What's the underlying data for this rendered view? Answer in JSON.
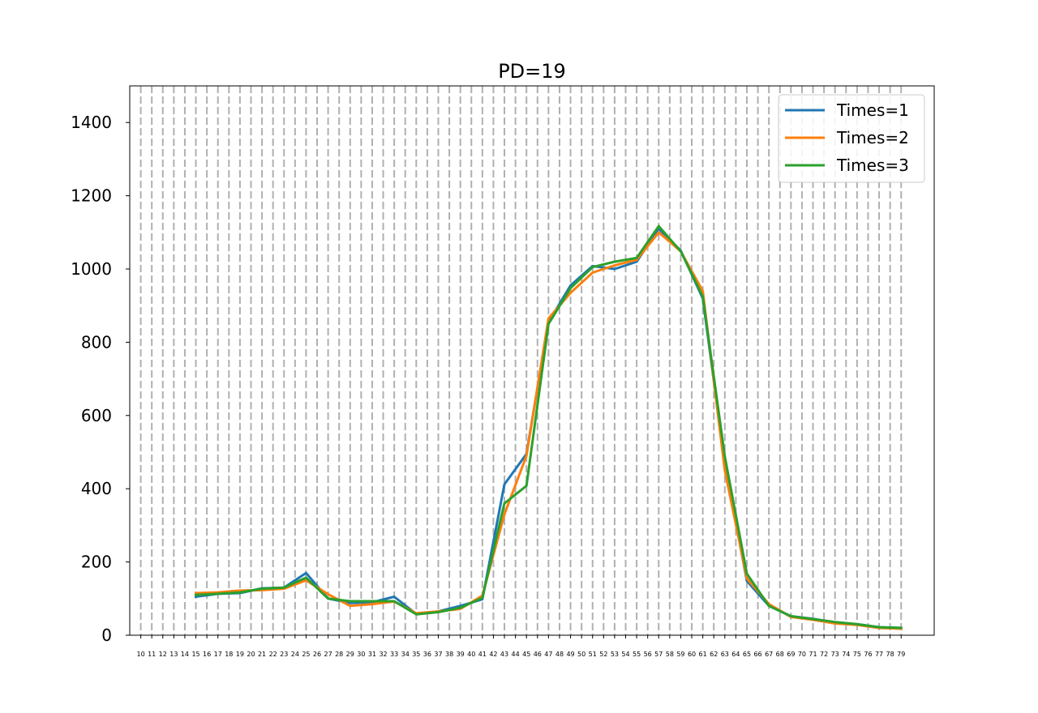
{
  "chart_data": {
    "type": "line",
    "title": "PD=19",
    "xlabel": "",
    "ylabel": "",
    "x_ticks": [
      10,
      11,
      12,
      13,
      14,
      15,
      16,
      17,
      18,
      19,
      20,
      21,
      22,
      23,
      24,
      25,
      26,
      27,
      28,
      29,
      30,
      31,
      32,
      33,
      34,
      35,
      36,
      37,
      38,
      39,
      40,
      41,
      42,
      43,
      44,
      45,
      46,
      47,
      48,
      49,
      50,
      51,
      52,
      53,
      54,
      55,
      56,
      57,
      58,
      59,
      60,
      61,
      62,
      63,
      64,
      65,
      66,
      67,
      68,
      69,
      70,
      71,
      72,
      73,
      74,
      75,
      76,
      77,
      78,
      79
    ],
    "y_ticks": [
      0,
      200,
      400,
      600,
      800,
      1000,
      1200,
      1400
    ],
    "xlim": [
      9,
      82
    ],
    "ylim": [
      0,
      1500
    ],
    "grid": {
      "x": true,
      "style": "dashed",
      "color": "#b0b0b0"
    },
    "legend": {
      "position": "top-right"
    },
    "series": [
      {
        "name": "Times=1",
        "color": "#1f77b4",
        "x": [
          15,
          17,
          19,
          21,
          23,
          25,
          27,
          29,
          31,
          33,
          35,
          37,
          39,
          41,
          43,
          45,
          47,
          49,
          51,
          53,
          55,
          57,
          59,
          61,
          63,
          65,
          67,
          69,
          71,
          73,
          75,
          77,
          79
        ],
        "values": [
          105,
          113,
          115,
          128,
          130,
          170,
          100,
          88,
          90,
          105,
          58,
          65,
          80,
          98,
          412,
          495,
          855,
          955,
          1008,
          1000,
          1020,
          1110,
          1050,
          920,
          470,
          148,
          80,
          52,
          45,
          35,
          30,
          22,
          20
        ]
      },
      {
        "name": "Times=2",
        "color": "#ff7f0e",
        "x": [
          15,
          17,
          19,
          21,
          23,
          25,
          27,
          29,
          31,
          33,
          35,
          37,
          39,
          41,
          43,
          45,
          47,
          49,
          51,
          53,
          55,
          57,
          59,
          61,
          63,
          65,
          67,
          69,
          71,
          73,
          75,
          77,
          79
        ],
        "values": [
          115,
          117,
          122,
          123,
          127,
          150,
          112,
          80,
          85,
          92,
          60,
          65,
          72,
          108,
          330,
          490,
          865,
          935,
          990,
          1010,
          1025,
          1100,
          1048,
          940,
          450,
          155,
          85,
          50,
          42,
          32,
          28,
          20,
          18
        ]
      },
      {
        "name": "Times=3",
        "color": "#2ca02c",
        "x": [
          15,
          17,
          19,
          21,
          23,
          25,
          27,
          29,
          31,
          33,
          35,
          37,
          39,
          41,
          43,
          45,
          47,
          49,
          51,
          53,
          55,
          57,
          59,
          61,
          63,
          65,
          67,
          69,
          71,
          73,
          75,
          77,
          79
        ],
        "values": [
          110,
          113,
          117,
          127,
          130,
          157,
          100,
          93,
          93,
          93,
          57,
          63,
          75,
          102,
          360,
          408,
          850,
          948,
          1005,
          1020,
          1030,
          1117,
          1048,
          925,
          488,
          168,
          80,
          52,
          44,
          36,
          30,
          22,
          20
        ]
      }
    ]
  }
}
